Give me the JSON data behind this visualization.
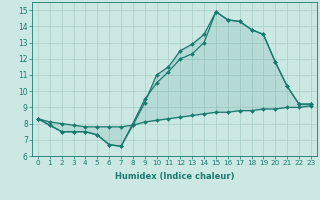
{
  "xlabel": "Humidex (Indice chaleur)",
  "bg_color": "#cce8e4",
  "grid_color": "#aacfca",
  "line_color": "#1a7a6e",
  "xlim": [
    -0.5,
    23.5
  ],
  "ylim": [
    6.0,
    15.5
  ],
  "yticks": [
    6,
    7,
    8,
    9,
    10,
    11,
    12,
    13,
    14,
    15
  ],
  "xticks": [
    0,
    1,
    2,
    3,
    4,
    5,
    6,
    7,
    8,
    9,
    10,
    11,
    12,
    13,
    14,
    15,
    16,
    17,
    18,
    19,
    20,
    21,
    22,
    23
  ],
  "line1": [
    8.3,
    7.9,
    7.5,
    7.5,
    7.5,
    7.3,
    6.7,
    6.6,
    7.9,
    9.3,
    11.0,
    11.5,
    12.5,
    12.9,
    13.5,
    14.9,
    14.4,
    14.3,
    13.8,
    13.5,
    11.8,
    10.3,
    9.2,
    9.2
  ],
  "line2": [
    8.3,
    7.9,
    7.5,
    7.5,
    7.5,
    7.3,
    6.7,
    6.6,
    8.0,
    9.5,
    10.5,
    11.2,
    12.0,
    12.3,
    13.0,
    14.9,
    14.4,
    14.3,
    13.8,
    13.5,
    11.8,
    10.3,
    9.2,
    9.2
  ],
  "line3": [
    8.3,
    8.1,
    8.0,
    7.9,
    7.8,
    7.8,
    7.8,
    7.8,
    7.9,
    8.1,
    8.2,
    8.3,
    8.4,
    8.5,
    8.6,
    8.7,
    8.7,
    8.8,
    8.8,
    8.9,
    8.9,
    9.0,
    9.0,
    9.1
  ],
  "xlabel_fontsize": 6.0,
  "tick_fontsize": 5.2,
  "ytick_fontsize": 5.5
}
